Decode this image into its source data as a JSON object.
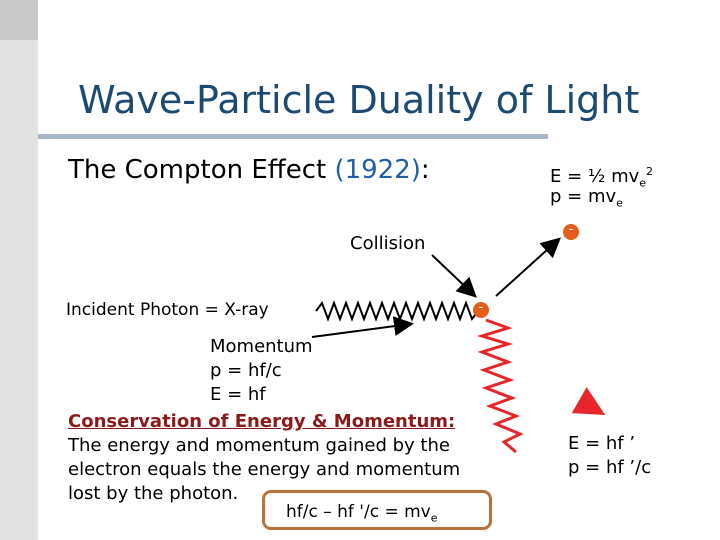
{
  "slide": {
    "title": "Wave-Particle Duality of Light",
    "subtitle_prefix": "The Compton Effect ",
    "subtitle_year": "(1922)",
    "subtitle_suffix": ":"
  },
  "diagram": {
    "electron_symbol": "-",
    "collision_label": "Collision",
    "incident_photon_label": "Incident Photon = X-ray",
    "momentum_lines": [
      "Momentum",
      "p = hf/c",
      "E = hf"
    ],
    "electron_energy": "E = ½ mv",
    "electron_energy_sub": "e",
    "electron_energy_sup": "2",
    "electron_momentum": "p = mv",
    "electron_momentum_sub": "e",
    "scattered_energy": "E = hf ’",
    "scattered_momentum": "p = hf ’/c",
    "photon_color": "#e8262a",
    "arrow_color": "#e8262a"
  },
  "conservation": {
    "heading": "Conservation of Energy & Momentum:",
    "lines": [
      "The energy and momentum gained by the",
      "electron equals the energy and momentum",
      "lost by the photon."
    ],
    "equation": "hf/c – hf '/c = mv",
    "equation_sub": "e"
  }
}
